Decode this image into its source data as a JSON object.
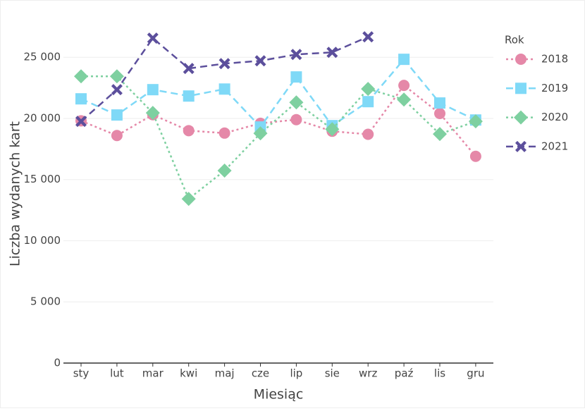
{
  "chart_data": {
    "type": "line",
    "x_label": "Miesiąc",
    "y_label": "Liczba wydanych kart",
    "legend_title": "Rok",
    "categories": [
      "sty",
      "lut",
      "mar",
      "kwi",
      "maj",
      "cze",
      "lip",
      "sie",
      "wrz",
      "paź",
      "lis",
      "gru"
    ],
    "series": [
      {
        "name": "2018",
        "color": "#e588a8",
        "dash": "dot",
        "marker": "circle",
        "values": [
          19800,
          18600,
          20300,
          19000,
          18800,
          19600,
          19900,
          18950,
          18700,
          22700,
          20400,
          16900
        ]
      },
      {
        "name": "2019",
        "color": "#7fd9f7",
        "dash": "dash",
        "marker": "square",
        "values": [
          21600,
          20280,
          22350,
          21830,
          22400,
          19300,
          23390,
          19410,
          21370,
          24830,
          21260,
          19870
        ]
      },
      {
        "name": "2020",
        "color": "#7ed0a0",
        "dash": "dot",
        "marker": "diamond",
        "values": [
          23440,
          23440,
          20450,
          13420,
          15730,
          18780,
          21310,
          19120,
          22410,
          21540,
          18720,
          19760
        ]
      },
      {
        "name": "2021",
        "color": "#5c4f9c",
        "dash": "dash",
        "marker": "x",
        "values": [
          19760,
          22350,
          26560,
          24080,
          24480,
          24710,
          25230,
          25400,
          26670,
          null,
          null,
          null
        ]
      }
    ],
    "ylim": [
      0,
      28700
    ],
    "yticks": [
      0,
      {
        "value": 5000,
        "label": "5 000"
      },
      {
        "value": 10000,
        "label": "10 000"
      },
      {
        "value": 15000,
        "label": "15 000"
      },
      {
        "value": 20000,
        "label": "20 000"
      },
      {
        "value": 25000,
        "label": "25 000"
      }
    ],
    "grid": true,
    "legend": "right"
  }
}
